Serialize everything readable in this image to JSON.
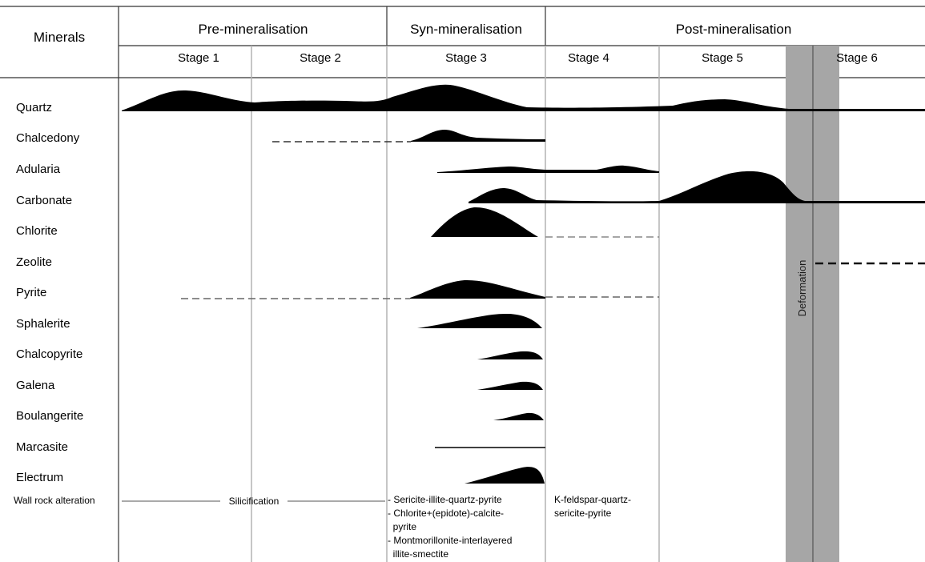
{
  "header": {
    "minerals_label": "Minerals",
    "phases": [
      "Pre-mineralisation",
      "Syn-mineralisation",
      "Post-mineralisation"
    ],
    "stages": [
      "Stage 1",
      "Stage 2",
      "Stage 3",
      "Stage 4",
      "Stage 5",
      "Stage 6"
    ]
  },
  "minerals": [
    "Quartz",
    "Chalcedony",
    "Adularia",
    "Carbonate",
    "Chlorite",
    "Zeolite",
    "Pyrite",
    "Sphalerite",
    "Chalcopyrite",
    "Galena",
    "Boulangerite",
    "Marcasite",
    "Electrum"
  ],
  "deformation_label": "Deformation",
  "wall_rock": {
    "label": "Wall rock alteration",
    "silicification": "Silicification",
    "stage3_lines": [
      "- Sericite-illite-quartz-pyrite",
      "- Chlorite+(epidote)-calcite-",
      "  pyrite",
      "- Montmorillonite-interlayered",
      "  illite-smectite"
    ],
    "stage4_lines": [
      "K-feldspar-quartz-",
      "sericite-pyrite"
    ]
  },
  "colors": {
    "fill": "#000000",
    "grid": "#b3b3b3",
    "deformation_band": "#a6a6a6",
    "dash": "#333333"
  }
}
